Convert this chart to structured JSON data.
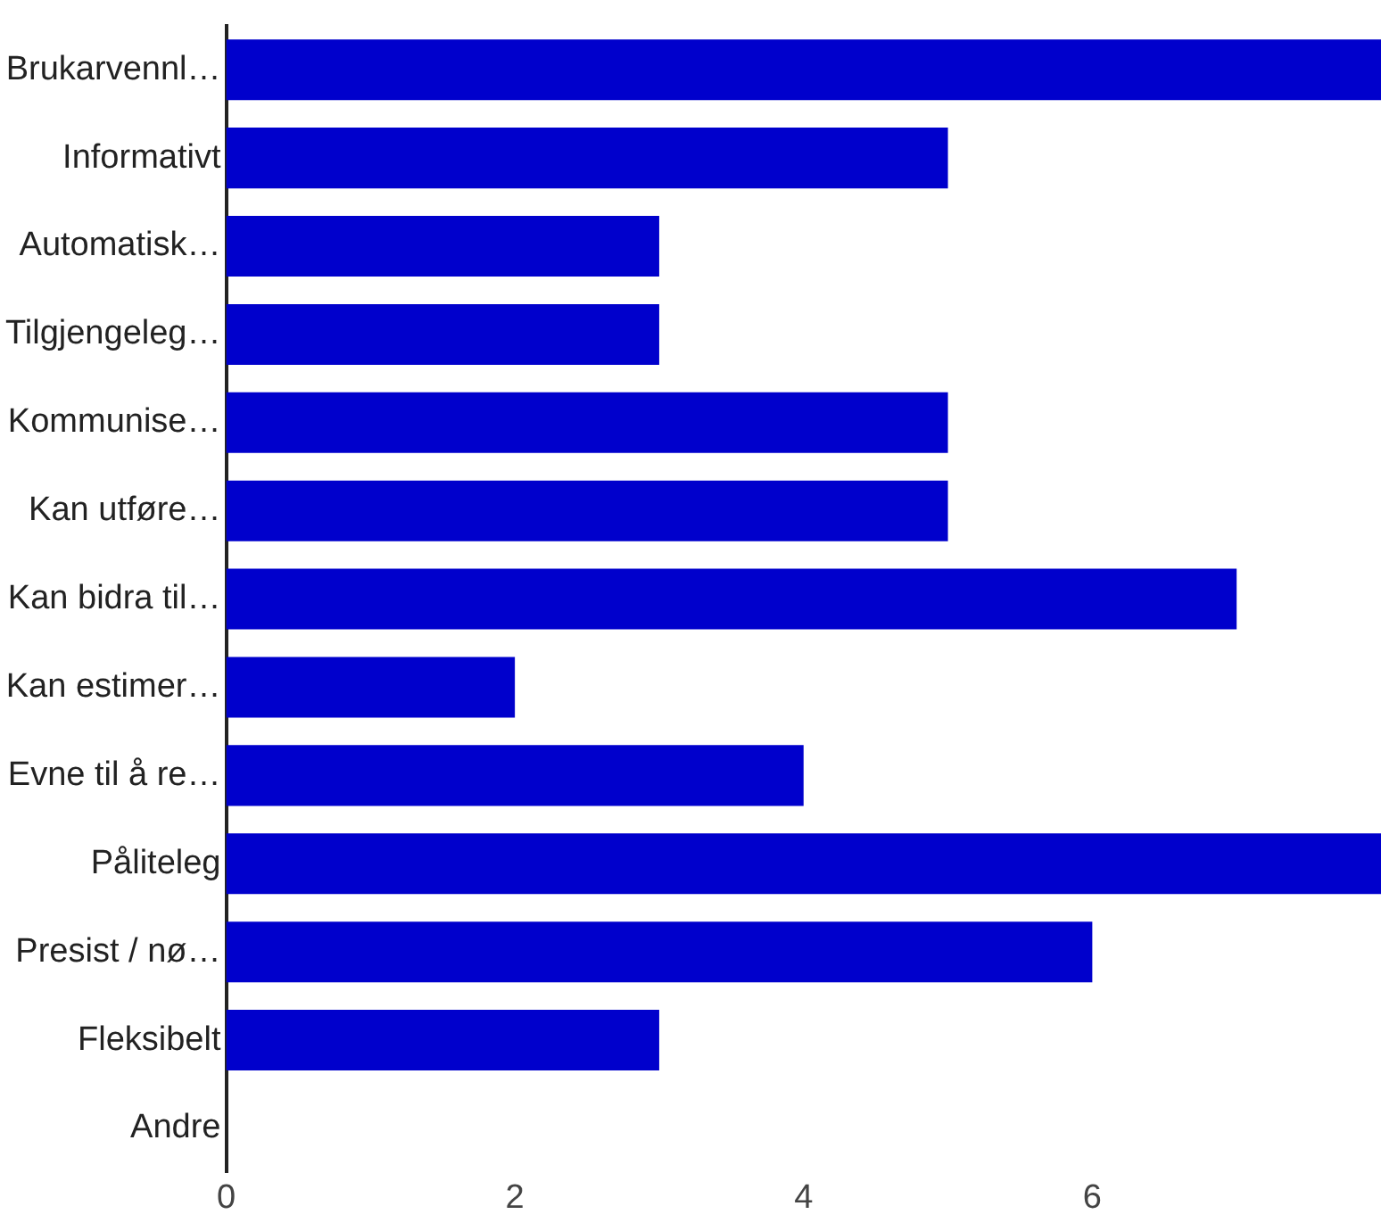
{
  "chart_data": {
    "type": "bar",
    "orientation": "horizontal",
    "categories": [
      "Brukarvennl…",
      "Informativt",
      "Automatisk…",
      "Tilgjengeleg…",
      "Kommunise…",
      "Kan utføre…",
      "Kan bidra til…",
      "Kan estimer…",
      "Evne til å re…",
      "Påliteleg",
      "Presist / nø…",
      "Fleksibelt",
      "Andre"
    ],
    "values": [
      8,
      5,
      3,
      3,
      5,
      5,
      7,
      2,
      4,
      8,
      6,
      3,
      0
    ],
    "color": "#0000cc",
    "xlim": [
      0,
      8
    ],
    "xticks": [
      0,
      2,
      4,
      6
    ],
    "grid": false,
    "legend": false
  }
}
